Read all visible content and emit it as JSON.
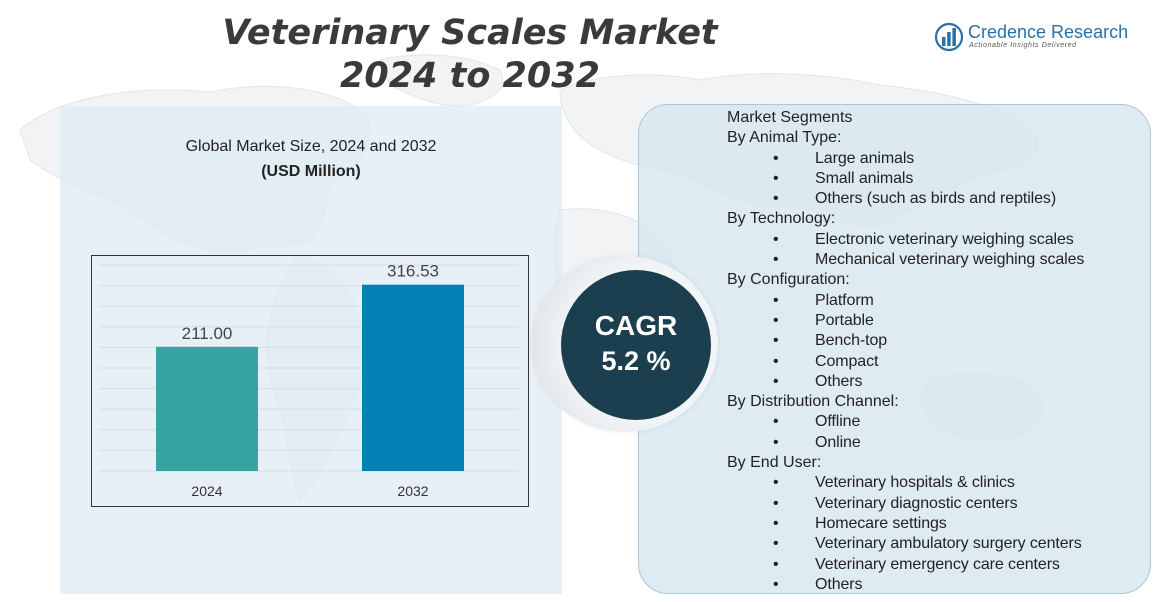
{
  "title": {
    "line1": "Veterinary Scales Market",
    "line2": "2024 to 2032"
  },
  "logo": {
    "name": "Credence Research",
    "tagline": "Actionable Insights Delivered",
    "icon": "bar-chart-logo-icon"
  },
  "colors": {
    "bar_2024": "#35a5a4",
    "bar_2032": "#0181b4",
    "cagr_bg": "#1c3f4f",
    "logo_blue": "#2a6fa8"
  },
  "chart_subtitle": "Global Market Size, 2024 and 2032",
  "chart_unit": "(USD Million)",
  "chart_data": {
    "type": "bar",
    "categories": [
      "2024",
      "2032"
    ],
    "values": [
      211.0,
      316.53
    ],
    "value_labels": [
      "211.00",
      "316.53"
    ],
    "ylim": [
      0,
      350
    ],
    "grid": true,
    "title": "Global Market Size, 2024 and 2032",
    "ylabel": "(USD Million)"
  },
  "cagr": {
    "label": "CAGR",
    "value": "5.2 %"
  },
  "segments": {
    "heading": "Market Segments",
    "groups": [
      {
        "title": "By Animal Type:",
        "items": [
          "Large animals",
          "Small animals",
          "Others (such as birds and reptiles)"
        ]
      },
      {
        "title": "By Technology:",
        "items": [
          "Electronic veterinary weighing scales",
          "Mechanical veterinary weighing scales"
        ]
      },
      {
        "title": "By Configuration:",
        "items": [
          "Platform",
          "Portable",
          "Bench-top",
          "Compact",
          "Others"
        ]
      },
      {
        "title": "By Distribution Channel:",
        "items": [
          "Offline",
          "Online"
        ]
      },
      {
        "title": "By End User:",
        "items": [
          "Veterinary hospitals & clinics",
          "Veterinary diagnostic centers",
          "Homecare settings",
          "Veterinary ambulatory surgery centers",
          "Veterinary emergency care centers",
          "Others"
        ]
      }
    ]
  }
}
